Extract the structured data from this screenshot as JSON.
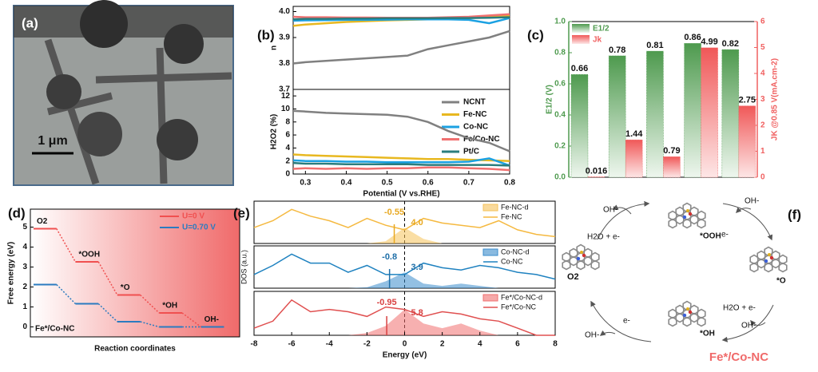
{
  "image_panel": {
    "panel_label": "(a)",
    "scale_bar": "1 μm"
  },
  "chart_data": [
    {
      "type": "line",
      "panel_label": "(b)",
      "ylabel": "n",
      "x": [
        0.27,
        0.3,
        0.35,
        0.4,
        0.45,
        0.5,
        0.55,
        0.6,
        0.65,
        0.7,
        0.75,
        0.8
      ],
      "xlim": [
        0.27,
        0.8
      ],
      "ylim": [
        3.7,
        4.02
      ],
      "yticks": [
        3.7,
        3.8,
        3.9,
        {
          "value": 4,
          "label": "4.0"
        }
      ],
      "series": [
        {
          "name": "NCNT",
          "color": "#808080",
          "values": [
            3.8,
            3.805,
            3.81,
            3.815,
            3.82,
            3.825,
            3.83,
            3.855,
            3.87,
            3.885,
            3.9,
            3.925
          ]
        },
        {
          "name": "Fe-NC",
          "color": "#e8b820",
          "values": [
            3.945,
            3.95,
            3.955,
            3.96,
            3.963,
            3.966,
            3.968,
            3.97,
            3.972,
            3.975,
            3.98,
            3.985
          ]
        },
        {
          "name": "Co-NC",
          "color": "#1ba1e2",
          "values": [
            3.965,
            3.966,
            3.967,
            3.968,
            3.968,
            3.969,
            3.97,
            3.97,
            3.97,
            3.968,
            3.955,
            3.975
          ]
        },
        {
          "name": "Fe/Co-NC",
          "color": "#f07070",
          "values": [
            3.98,
            3.978,
            3.978,
            3.977,
            3.977,
            3.976,
            3.976,
            3.976,
            3.978,
            3.98,
            3.985,
            3.99
          ]
        },
        {
          "name": "Pt/C",
          "color": "#2a7d7d",
          "values": [
            3.97,
            3.972,
            3.972,
            3.973,
            3.973,
            3.974,
            3.974,
            3.974,
            3.975,
            3.975,
            3.976,
            3.978
          ]
        }
      ]
    },
    {
      "type": "line",
      "ylabel": "H2O2 (%)",
      "xlabel": "Potential (V vs.RHE)",
      "x": [
        0.27,
        0.3,
        0.35,
        0.4,
        0.45,
        0.5,
        0.55,
        0.6,
        0.65,
        0.7,
        0.75,
        0.8
      ],
      "xlim": [
        0.27,
        0.8
      ],
      "xticks": [
        0.3,
        0.4,
        0.5,
        0.6,
        0.7,
        0.8
      ],
      "ylim": [
        0,
        13
      ],
      "yticks": [
        0,
        2,
        4,
        6,
        8,
        10,
        12
      ],
      "series": [
        {
          "color": "#808080",
          "values": [
            9.7,
            9.6,
            9.4,
            9.3,
            9.2,
            9.1,
            8.8,
            8.0,
            6.6,
            5.5,
            4.8,
            3.5
          ]
        },
        {
          "color": "#e8b820",
          "values": [
            3.0,
            2.9,
            2.8,
            2.7,
            2.6,
            2.5,
            2.4,
            2.3,
            2.3,
            2.2,
            2.1,
            2.0
          ]
        },
        {
          "color": "#1ba1e2",
          "values": [
            2.1,
            2.0,
            2.0,
            1.9,
            1.9,
            1.8,
            1.8,
            1.8,
            1.8,
            1.9,
            2.4,
            1.3
          ]
        },
        {
          "color": "#f07070",
          "values": [
            0.8,
            0.9,
            0.8,
            0.9,
            0.8,
            0.9,
            0.9,
            1.0,
            1.0,
            0.9,
            0.8,
            0.6
          ]
        },
        {
          "color": "#2a7d7d",
          "values": [
            1.7,
            1.6,
            1.6,
            1.5,
            1.5,
            1.5,
            1.5,
            1.4,
            1.4,
            1.4,
            1.4,
            1.3
          ]
        }
      ]
    },
    {
      "type": "bar",
      "panel_label": "(c)",
      "ylabel": "E1/2 (V)",
      "y2label": "JK @0.85 V(mA.cm-2)",
      "ylim": [
        0,
        1
      ],
      "yticks": [
        {
          "value": 0,
          "label": "0.0"
        },
        0.2,
        0.4,
        0.6,
        0.8,
        {
          "value": 1,
          "label": "1.0"
        }
      ],
      "y2lim": [
        0,
        6
      ],
      "y2ticks": [
        0,
        1,
        2,
        3,
        4,
        5,
        6
      ],
      "series": [
        {
          "name": "E1/2",
          "color": "#4e9a4e",
          "values": [
            0.66,
            0.78,
            0.81,
            0.86,
            0.82
          ]
        },
        {
          "name": "Jk",
          "color": "#f06060",
          "axis": "y2",
          "values": [
            0.016,
            1.44,
            0.79,
            4.99,
            2.75
          ]
        }
      ]
    },
    {
      "type": "step",
      "panel_label": "(d)",
      "ylabel": "Free energy (eV)",
      "xlabel": "Reaction coordinates",
      "annotation": "Fe*/Co-NC",
      "categories": [
        "O2",
        "*OOH",
        "*O",
        "*OH",
        "OH-"
      ],
      "ylim": [
        -0.5,
        5.9
      ],
      "yticks": [
        0,
        1,
        2,
        3,
        4,
        5
      ],
      "series": [
        {
          "name": "U=0 V",
          "color": "#f05050",
          "values": [
            4.92,
            3.26,
            1.6,
            0.7,
            0
          ]
        },
        {
          "name": "U=0.70 V",
          "color": "#2b7bc0",
          "values": [
            2.12,
            1.16,
            0.26,
            0,
            0
          ]
        }
      ]
    },
    {
      "type": "dos",
      "panel_label": "(e)",
      "x": [
        -8,
        -7,
        -6,
        -5,
        -4,
        -3,
        -2,
        -1,
        0,
        1,
        2,
        3,
        4,
        5,
        6,
        7,
        8
      ],
      "xlim": [
        -8,
        8
      ],
      "ylim": [
        0,
        1
      ],
      "d_center": -0.55,
      "peak_label": "4.0",
      "color": "#e8a820",
      "series": [
        {
          "name": "Fe-NC-d",
          "color": "#f5c25a",
          "values": [
            0,
            0,
            0,
            0,
            0,
            0,
            0,
            0.05,
            0.35,
            0.1,
            0,
            0,
            0,
            0,
            0,
            0,
            0
          ]
        },
        {
          "name": "Fe-NC",
          "color": "#f5b940",
          "values": [
            0.35,
            0.5,
            0.75,
            0.6,
            0.5,
            0.35,
            0.55,
            0.4,
            0.3,
            0.55,
            0.45,
            0.4,
            0.35,
            0.5,
            0.3,
            0.2,
            0.15
          ]
        }
      ]
    },
    {
      "type": "dos",
      "ylabel": "DOS (a.u.)",
      "x": [
        -8,
        -7,
        -6,
        -5,
        -4,
        -3,
        -2,
        -1,
        0,
        1,
        2,
        3,
        4,
        5,
        6,
        7,
        8
      ],
      "xlim": [
        -8,
        8
      ],
      "ylim": [
        0,
        1
      ],
      "d_center": -0.8,
      "peak_label": "3.9",
      "color": "#1f6fa8",
      "series": [
        {
          "name": "Co-NC-d",
          "color": "#3a8ccc",
          "values": [
            0,
            0,
            0,
            0,
            0,
            0,
            0.02,
            0.15,
            0.35,
            0.1,
            0.05,
            0.1,
            0.05,
            0,
            0,
            0,
            0
          ]
        },
        {
          "name": "Co-NC",
          "color": "#1f82c0",
          "values": [
            0.3,
            0.5,
            0.75,
            0.55,
            0.55,
            0.35,
            0.5,
            0.3,
            0.3,
            0.55,
            0.45,
            0.4,
            0.5,
            0.45,
            0.35,
            0.3,
            0.2
          ]
        }
      ]
    },
    {
      "type": "dos",
      "xlabel": "Energy (eV)",
      "x": [
        -8,
        -7,
        -6,
        -5,
        -4,
        -3,
        -2,
        -1,
        0,
        1,
        2,
        3,
        4,
        5,
        6,
        7,
        8
      ],
      "xlim": [
        -8,
        8
      ],
      "xticks": [
        -8,
        -6,
        -4,
        -2,
        0,
        2,
        4,
        6,
        8
      ],
      "ylim": [
        0,
        1
      ],
      "d_center": -0.95,
      "peak_label": "5.8",
      "color": "#d84040",
      "series": [
        {
          "name": "Fe*/Co-NC-d",
          "color": "#f07070",
          "values": [
            0,
            0,
            0,
            0,
            0,
            0,
            0.05,
            0.2,
            0.55,
            0.25,
            0.15,
            0.25,
            0.1,
            0,
            0,
            0,
            0
          ]
        },
        {
          "name": "Fe*/Co-NC",
          "color": "#e05050",
          "values": [
            0.15,
            0.3,
            0.75,
            0.5,
            0.55,
            0.5,
            0.4,
            0.6,
            0.55,
            0.4,
            0.5,
            0.45,
            0.35,
            0.3,
            0.15,
            0,
            0
          ]
        }
      ]
    }
  ],
  "diagram": {
    "panel_label": "(f)",
    "states": [
      "*OOH",
      "*O",
      "*OH",
      "O2"
    ],
    "steps": [
      {
        "reactant": "H2O + e-",
        "product": "OH-"
      },
      {
        "reactant": "e-",
        "product": "OH-"
      },
      {
        "reactant": "H2O + e-",
        "product": "OH-"
      },
      {
        "reactant": "e-",
        "product": "OH-"
      }
    ],
    "catalyst": "Fe*/Co-NC"
  }
}
